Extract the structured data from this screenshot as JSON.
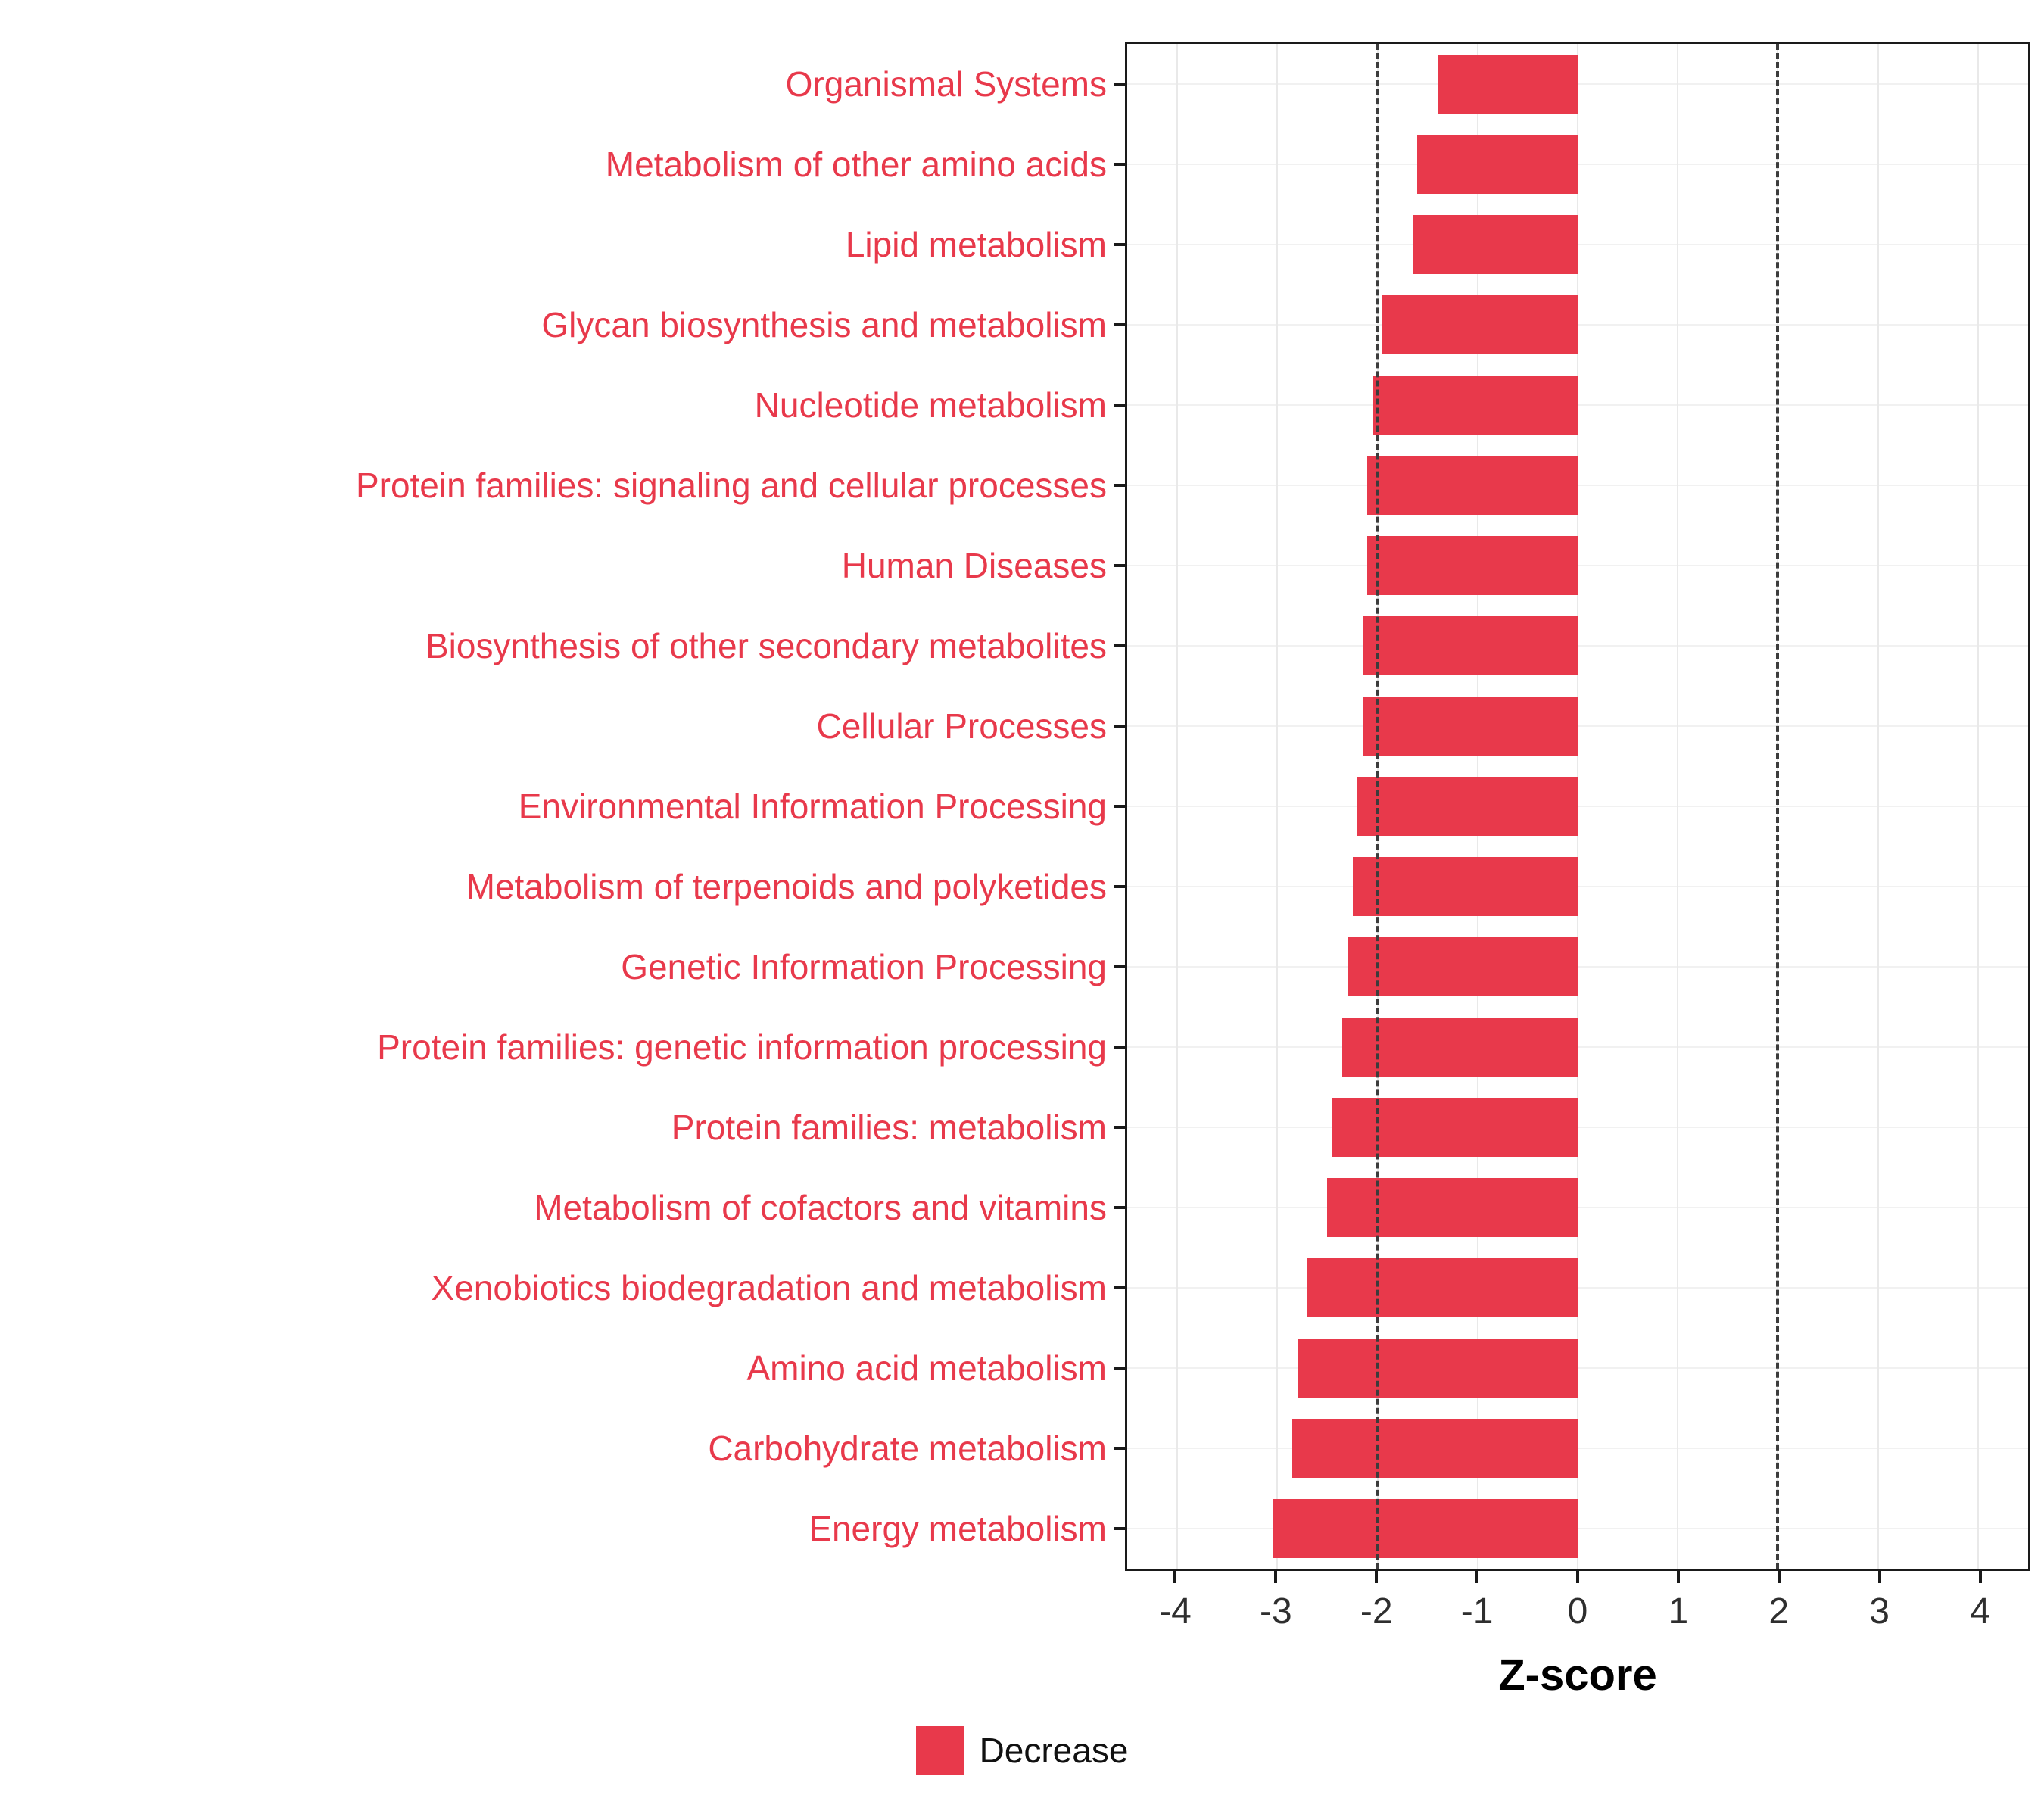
{
  "figure": {
    "background": "#FFFFFF",
    "legend": {
      "label": "Decrease",
      "swatch_color": "#E8394B"
    }
  },
  "chart_data": {
    "type": "bar",
    "orientation": "horizontal",
    "title": "",
    "xlabel": "Z-score",
    "ylabel": "",
    "xlim": [
      -4.5,
      4.5
    ],
    "x_ticks": [
      -4,
      -3,
      -2,
      -1,
      0,
      1,
      2,
      3,
      4
    ],
    "reference_lines": [
      -2,
      2
    ],
    "grid": true,
    "legend_position": "bottom",
    "bar_color": "#E8394B",
    "label_color": "#E8394B",
    "categories": [
      "Organismal Systems",
      "Metabolism of other amino acids",
      "Lipid metabolism",
      "Glycan biosynthesis and metabolism",
      "Nucleotide metabolism",
      "Protein families: signaling and cellular processes",
      "Human Diseases",
      "Biosynthesis of other secondary metabolites",
      "Cellular Processes",
      "Environmental Information Processing",
      "Metabolism of terpenoids and polyketides",
      "Genetic Information Processing",
      "Protein families: genetic information processing",
      "Protein families: metabolism",
      "Metabolism of cofactors and vitamins",
      "Xenobiotics biodegradation and metabolism",
      "Amino acid metabolism",
      "Carbohydrate metabolism",
      "Energy metabolism"
    ],
    "values": [
      -1.4,
      -1.6,
      -1.65,
      -1.95,
      -2.05,
      -2.1,
      -2.1,
      -2.15,
      -2.15,
      -2.2,
      -2.25,
      -2.3,
      -2.35,
      -2.45,
      -2.5,
      -2.7,
      -2.8,
      -2.85,
      -3.05
    ],
    "series_name": "Decrease"
  }
}
